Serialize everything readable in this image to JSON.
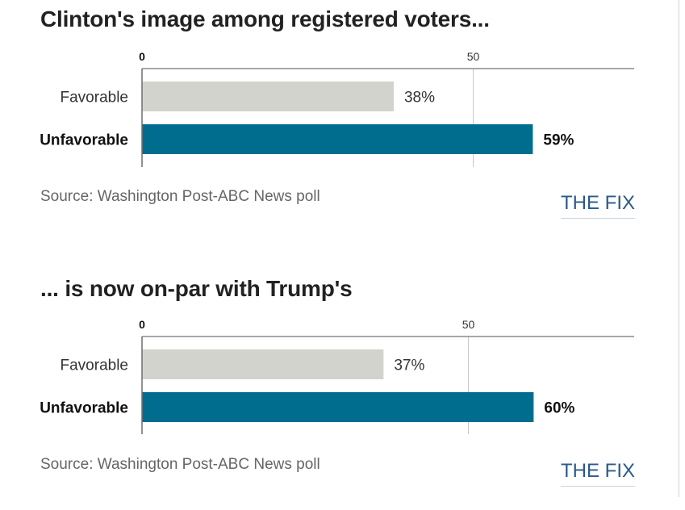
{
  "colors": {
    "favorable": "#d3d3ce",
    "unfavorable": "#006d8f",
    "axis": "#8c8c8c",
    "grid": "#c8c8c8",
    "brand": "#2b5a8a"
  },
  "chart_data": [
    {
      "type": "bar",
      "orientation": "horizontal",
      "title": "Clinton's image among registered voters...",
      "categories": [
        "Favorable",
        "Unfavorable"
      ],
      "values": [
        38,
        59
      ],
      "value_labels": [
        "38%",
        "59%"
      ],
      "xticks": [
        0,
        50
      ],
      "xtick_labels": [
        "0",
        "50"
      ],
      "xlim": [
        0,
        74.3
      ],
      "source": "Source: Washington Post-ABC News poll",
      "brand": "THE FIX"
    },
    {
      "type": "bar",
      "orientation": "horizontal",
      "title": "... is now on-par with Trump's",
      "categories": [
        "Favorable",
        "Unfavorable"
      ],
      "values": [
        37,
        60
      ],
      "value_labels": [
        "37%",
        "60%"
      ],
      "xticks": [
        0,
        50
      ],
      "xtick_labels": [
        "0",
        "50"
      ],
      "xlim": [
        0,
        75.4
      ],
      "source": "Source: Washington Post-ABC News poll",
      "brand": "THE FIX"
    }
  ]
}
